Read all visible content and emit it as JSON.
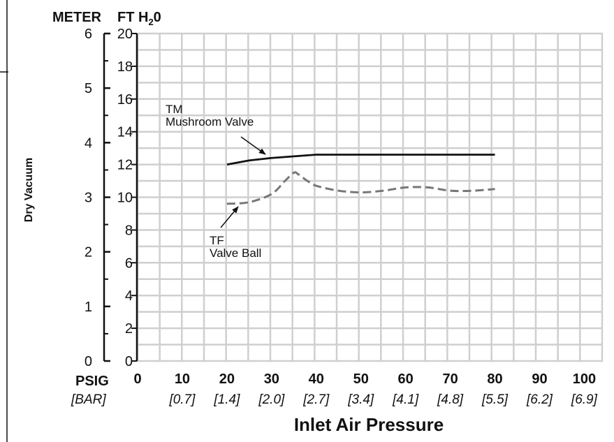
{
  "chart_data": {
    "type": "line",
    "x_label": "Inlet Air Pressure",
    "x_unit_label": "PSIG",
    "x_secondary_unit_label": "[BAR]",
    "x_ticks": [
      0,
      10,
      20,
      30,
      40,
      50,
      60,
      70,
      80,
      90,
      100
    ],
    "x_secondary_ticks": [
      "",
      "[0.7]",
      "[1.4]",
      "[2.0]",
      "[2.7]",
      "[3.4]",
      "[4.1]",
      "[4.8]",
      "[5.5]",
      "[6.2]",
      "[6.9]"
    ],
    "xlim": [
      0,
      104
    ],
    "y_label": "Dry Vacuum",
    "y_unit_label": "FT H20",
    "y_ticks": [
      0,
      2,
      4,
      6,
      8,
      10,
      12,
      14,
      16,
      18,
      20
    ],
    "ylim": [
      0,
      20
    ],
    "y_secondary_unit_label": "METER",
    "y_secondary_ticks": [
      0,
      1,
      2,
      3,
      4,
      5,
      6
    ],
    "grid": true,
    "series": [
      {
        "name": "TM Mushroom Valve",
        "label_lines": [
          "TM",
          "Mushroom Valve"
        ],
        "style": "solid",
        "color": "#111111",
        "x": [
          20,
          25,
          30,
          35,
          40,
          50,
          60,
          70,
          80
        ],
        "y": [
          12.0,
          12.25,
          12.4,
          12.5,
          12.6,
          12.6,
          12.6,
          12.6,
          12.6
        ]
      },
      {
        "name": "TF Valve Ball",
        "label_lines": [
          "TF",
          "Valve Ball"
        ],
        "style": "dashed",
        "color": "#777777",
        "x": [
          20,
          25,
          30,
          33,
          35,
          36,
          38,
          40,
          45,
          50,
          55,
          60,
          65,
          70,
          75,
          80
        ],
        "y": [
          9.6,
          9.7,
          10.2,
          11.0,
          11.5,
          11.4,
          11.0,
          10.7,
          10.4,
          10.3,
          10.4,
          10.6,
          10.6,
          10.4,
          10.4,
          10.5
        ]
      }
    ]
  }
}
